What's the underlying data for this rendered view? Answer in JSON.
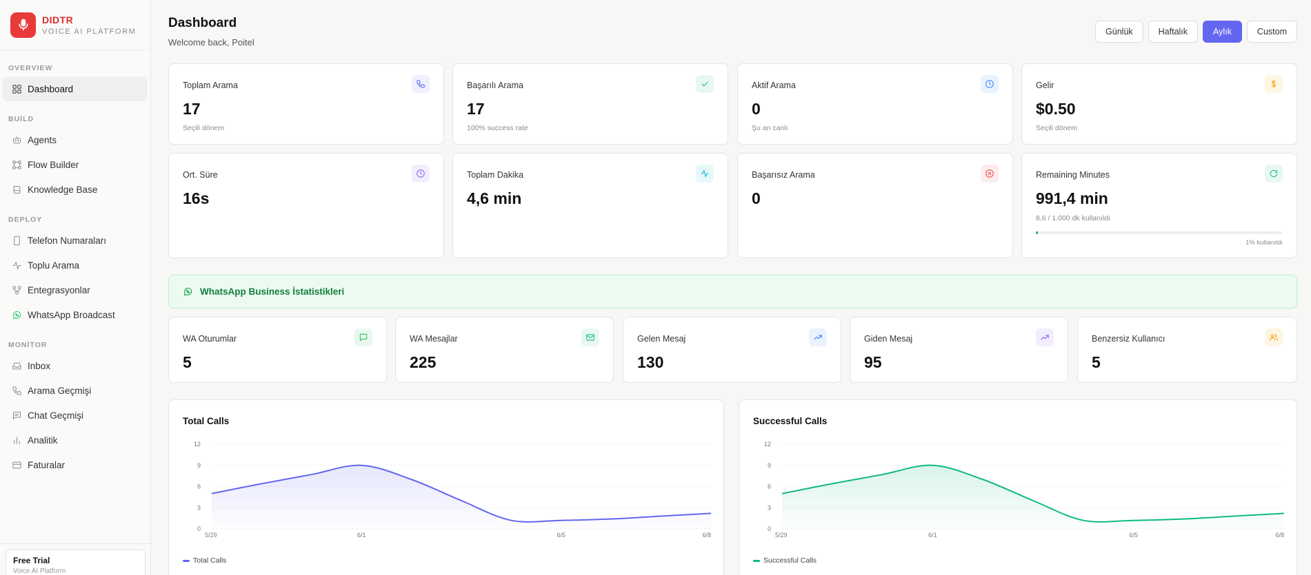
{
  "brand": {
    "name": "DIDTR",
    "subtitle": "VOICE AI PLATFORM"
  },
  "sidebar": {
    "sections": [
      {
        "title": "OVERVIEW",
        "items": [
          {
            "label": "Dashboard",
            "icon": "grid-icon"
          }
        ]
      },
      {
        "title": "BUİLD",
        "items": [
          {
            "label": "Agents",
            "icon": "robot-icon"
          },
          {
            "label": "Flow Builder",
            "icon": "flow-icon"
          },
          {
            "label": "Knowledge Base",
            "icon": "book-icon"
          }
        ]
      },
      {
        "title": "DEPLOY",
        "items": [
          {
            "label": "Telefon Numaraları",
            "icon": "phone-device-icon"
          },
          {
            "label": "Toplu Arama",
            "icon": "activity-icon"
          },
          {
            "label": "Entegrasyonlar",
            "icon": "integration-icon"
          },
          {
            "label": "WhatsApp Broadcast",
            "icon": "whatsapp-icon"
          }
        ]
      },
      {
        "title": "MONİTOR",
        "items": [
          {
            "label": "Inbox",
            "icon": "inbox-icon"
          },
          {
            "label": "Arama Geçmişi",
            "icon": "phone-icon"
          },
          {
            "label": "Chat Geçmişi",
            "icon": "chat-icon"
          },
          {
            "label": "Analitik",
            "icon": "bar-chart-icon"
          },
          {
            "label": "Faturalar",
            "icon": "card-icon"
          }
        ]
      }
    ],
    "trial": {
      "title": "Free Trial",
      "subtitle": "Voice AI Platform"
    }
  },
  "header": {
    "title": "Dashboard",
    "subtitle": "Welcome back, Poitel"
  },
  "range": {
    "options": [
      "Günlük",
      "Haftalık",
      "Aylık",
      "Custom"
    ],
    "active": "Aylık"
  },
  "stats": {
    "total_calls": {
      "label": "Toplam Arama",
      "value": "17",
      "sub": "Seçili dönem"
    },
    "successful_calls": {
      "label": "Başarılı Arama",
      "value": "17",
      "sub": "100% success rate"
    },
    "active_calls": {
      "label": "Aktif Arama",
      "value": "0",
      "sub": "Şu an canlı"
    },
    "revenue": {
      "label": "Gelir",
      "value": "$0.50",
      "sub": "Seçili dönem"
    },
    "avg_duration": {
      "label": "Ort. Süre",
      "value": "16s"
    },
    "total_minutes": {
      "label": "Toplam Dakika",
      "value": "4,6 min"
    },
    "failed_calls": {
      "label": "Başarısız Arama",
      "value": "0"
    },
    "remaining": {
      "label": "Remaining Minutes",
      "value": "991,4 min",
      "sub": "8,6 / 1.000 dk kullanıldı",
      "usage_label": "1% kullanıldı",
      "usage_fraction": 0.0086
    }
  },
  "whatsapp": {
    "title": "WhatsApp Business İstatistikleri",
    "sessions": {
      "label": "WA Oturumlar",
      "value": "5"
    },
    "messages": {
      "label": "WA Mesajlar",
      "value": "225"
    },
    "incoming": {
      "label": "Gelen Mesaj",
      "value": "130"
    },
    "outgoing": {
      "label": "Giden Mesaj",
      "value": "95"
    },
    "unique_users": {
      "label": "Benzersiz Kullanıcı",
      "value": "5"
    }
  },
  "colors": {
    "accent": "#6366f1",
    "success": "#10b981",
    "brand": "#e83a3a"
  },
  "chart_data": [
    {
      "type": "area",
      "title": "Total Calls",
      "x": [
        "5/29",
        "5/30",
        "5/31",
        "6/1",
        "6/2",
        "6/3",
        "6/4",
        "6/5",
        "6/6",
        "6/7",
        "6/8"
      ],
      "x_ticks": [
        "5/29",
        "6/1",
        "6/5",
        "6/8"
      ],
      "series": [
        {
          "name": "Total Calls",
          "values": [
            5,
            6.4,
            7.7,
            9,
            7,
            4,
            1.2,
            1.2,
            1.4,
            1.8,
            2.2
          ],
          "color": "#6366f1"
        }
      ],
      "ylim": [
        0,
        12
      ],
      "yticks": [
        0,
        3,
        6,
        9,
        12
      ],
      "legend": "bottom-left",
      "grid": true
    },
    {
      "type": "area",
      "title": "Successful Calls",
      "x": [
        "5/29",
        "5/30",
        "5/31",
        "6/1",
        "6/2",
        "6/3",
        "6/4",
        "6/5",
        "6/6",
        "6/7",
        "6/8"
      ],
      "x_ticks": [
        "5/29",
        "6/1",
        "6/5",
        "6/8"
      ],
      "series": [
        {
          "name": "Successful Calls",
          "values": [
            5,
            6.4,
            7.7,
            9,
            7,
            4,
            1.2,
            1.2,
            1.4,
            1.8,
            2.2
          ],
          "color": "#10b981"
        }
      ],
      "ylim": [
        0,
        12
      ],
      "yticks": [
        0,
        3,
        6,
        9,
        12
      ],
      "legend": "bottom-left",
      "grid": true
    }
  ]
}
